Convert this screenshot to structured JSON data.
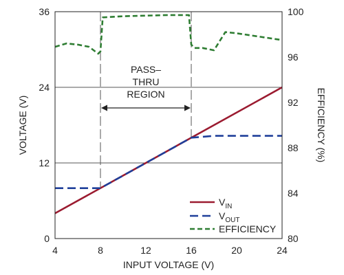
{
  "chart_data": {
    "type": "line",
    "xlabel": "INPUT VOLTAGE (V)",
    "ylabel_left": "VOLTAGE (V)",
    "ylabel_right": "EFFICIENCY (%)",
    "xlim": [
      4,
      24
    ],
    "ylim_left": [
      0,
      36
    ],
    "ylim_right": [
      80,
      100
    ],
    "x_ticks": [
      "4",
      "8",
      "12",
      "16",
      "20",
      "24"
    ],
    "y_left_ticks": [
      "0",
      "12",
      "24",
      "36"
    ],
    "y_right_ticks": [
      "80",
      "84",
      "88",
      "92",
      "96",
      "100"
    ],
    "gridlines_left": [
      12,
      24
    ],
    "colors": {
      "vin": "#9b1b30",
      "vout": "#1f3f9a",
      "efficiency": "#2e7d32",
      "grid": "#555555"
    },
    "annotation": {
      "line1": "PASS–",
      "line2": "THRU",
      "line3": "REGION",
      "x_start": 8,
      "x_end": 16
    },
    "series": [
      {
        "key": "vin",
        "axis": "left",
        "legend_main": "V",
        "legend_sub": "IN",
        "style": "solid",
        "x": [
          4,
          24
        ],
        "y": [
          4,
          24
        ]
      },
      {
        "key": "vout",
        "axis": "left",
        "legend_main": "V",
        "legend_sub": "OUT",
        "style": "dashed",
        "x": [
          4,
          8,
          16,
          18,
          24
        ],
        "y": [
          8,
          8,
          16,
          16.3,
          16.3
        ]
      },
      {
        "key": "efficiency",
        "axis": "right",
        "legend_main": "EFFICIENCY",
        "legend_sub": "",
        "style": "dashed",
        "x": [
          4,
          5,
          6,
          7,
          7.8,
          8,
          8.2,
          10,
          14,
          15.8,
          16,
          16.3,
          17,
          18,
          19,
          20,
          22,
          24
        ],
        "y": [
          96.9,
          97.2,
          97.1,
          96.9,
          96.3,
          96.5,
          99.5,
          99.6,
          99.7,
          99.7,
          97.1,
          96.8,
          96.8,
          96.6,
          98.2,
          98.1,
          97.8,
          97.5
        ]
      }
    ]
  }
}
